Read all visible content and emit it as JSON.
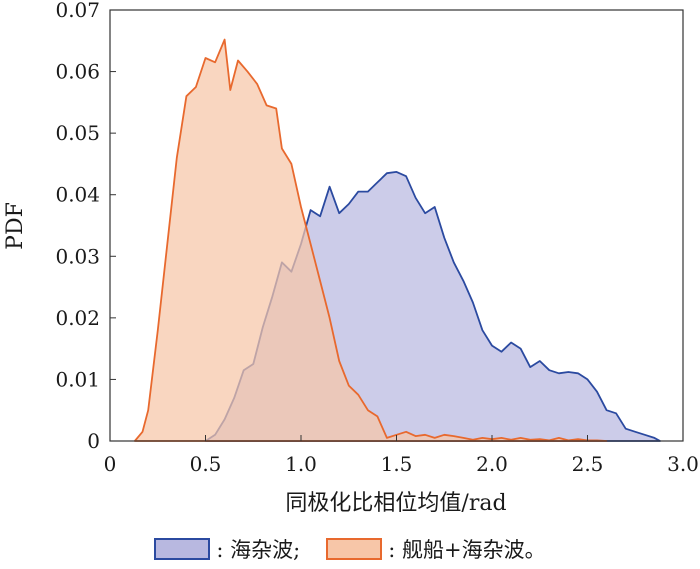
{
  "chart_data": {
    "type": "area",
    "xlabel": "同极化比相位均值/rad",
    "ylabel": "PDF",
    "xlim": [
      0,
      3.0
    ],
    "ylim": [
      0,
      0.07
    ],
    "x_ticks": [
      "0",
      "0.5",
      "1.0",
      "1.5",
      "2.0",
      "2.5",
      "3.0"
    ],
    "y_ticks": [
      "0",
      "0.01",
      "0.02",
      "0.03",
      "0.04",
      "0.05",
      "0.06",
      "0.07"
    ],
    "legend_position": "bottom",
    "series": [
      {
        "name": ": 海杂波;",
        "fill": "#b8b8e0",
        "stroke": "#2b4aa0",
        "x": [
          0.5,
          0.55,
          0.6,
          0.65,
          0.7,
          0.75,
          0.8,
          0.85,
          0.9,
          0.95,
          1.0,
          1.05,
          1.1,
          1.15,
          1.2,
          1.25,
          1.3,
          1.35,
          1.4,
          1.45,
          1.5,
          1.55,
          1.6,
          1.65,
          1.7,
          1.75,
          1.8,
          1.85,
          1.9,
          1.95,
          2.0,
          2.05,
          2.1,
          2.15,
          2.2,
          2.25,
          2.3,
          2.35,
          2.4,
          2.45,
          2.5,
          2.55,
          2.6,
          2.65,
          2.7,
          2.75,
          2.8,
          2.85,
          2.88
        ],
        "y": [
          0.0,
          0.001,
          0.0035,
          0.007,
          0.0115,
          0.0125,
          0.0185,
          0.0235,
          0.029,
          0.0275,
          0.032,
          0.0375,
          0.0365,
          0.0413,
          0.037,
          0.0385,
          0.0405,
          0.0405,
          0.042,
          0.0435,
          0.0437,
          0.043,
          0.0395,
          0.037,
          0.038,
          0.033,
          0.029,
          0.026,
          0.0225,
          0.018,
          0.0155,
          0.0145,
          0.016,
          0.015,
          0.012,
          0.013,
          0.0115,
          0.011,
          0.0112,
          0.011,
          0.01,
          0.008,
          0.005,
          0.0045,
          0.002,
          0.0015,
          0.001,
          0.0005,
          0.0
        ]
      },
      {
        "name": ": 舰船+海杂波。",
        "fill": "#f7c6a8",
        "stroke": "#e8692e",
        "x": [
          0.13,
          0.17,
          0.2,
          0.25,
          0.3,
          0.35,
          0.4,
          0.45,
          0.5,
          0.55,
          0.6,
          0.63,
          0.67,
          0.72,
          0.77,
          0.82,
          0.87,
          0.9,
          0.95,
          1.0,
          1.05,
          1.1,
          1.15,
          1.2,
          1.25,
          1.3,
          1.35,
          1.4,
          1.45,
          1.5,
          1.55,
          1.6,
          1.65,
          1.7,
          1.75,
          1.8,
          1.85,
          1.9,
          1.95,
          2.0,
          2.05,
          2.1,
          2.15,
          2.2,
          2.25,
          2.3,
          2.35,
          2.4,
          2.45,
          2.5,
          2.55,
          2.6
        ],
        "y": [
          0.0,
          0.0015,
          0.005,
          0.018,
          0.032,
          0.046,
          0.056,
          0.0575,
          0.0622,
          0.0615,
          0.0652,
          0.057,
          0.0618,
          0.06,
          0.058,
          0.0545,
          0.054,
          0.0475,
          0.045,
          0.038,
          0.032,
          0.026,
          0.02,
          0.013,
          0.009,
          0.0075,
          0.005,
          0.004,
          0.0005,
          0.001,
          0.0015,
          0.0008,
          0.001,
          0.0005,
          0.001,
          0.0008,
          0.0005,
          0.0002,
          0.0005,
          0.0003,
          0.0005,
          0.0002,
          0.0005,
          0.0002,
          0.0003,
          0.0001,
          0.0005,
          0.0001,
          0.0003,
          0.0001,
          0.0001,
          0.0
        ]
      }
    ]
  }
}
